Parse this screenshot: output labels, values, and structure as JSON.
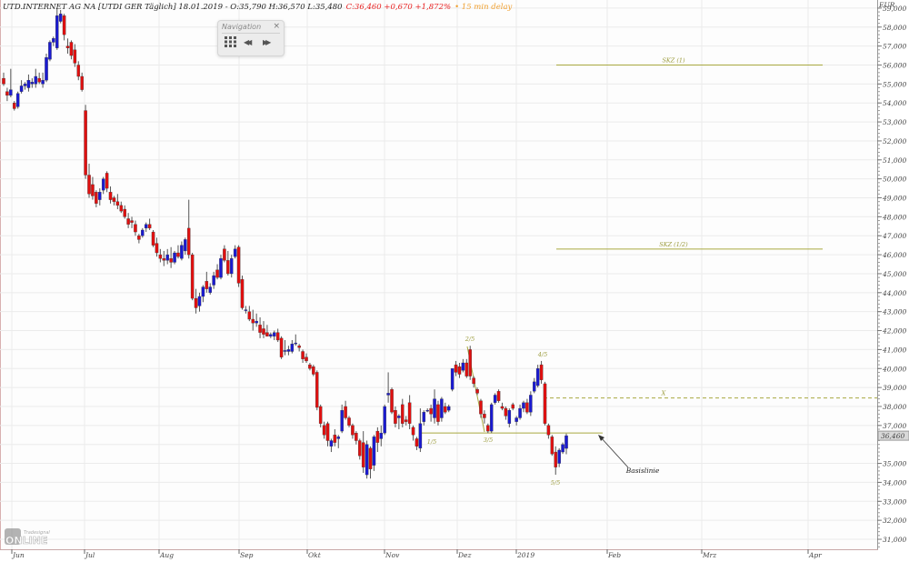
{
  "header": {
    "instrument": "UTD.INTERNET AG NA [UTDI GER Täglich] 18.01.2019 - O:35,790 H:36,570 L:35,480",
    "change": "C:36,460 +0,670 +1,872%",
    "delay": "• 15 min delay"
  },
  "navigation": {
    "title": "Navigation",
    "close_icon": "×",
    "grid_icon": "grid-icon",
    "back_icon": "◀◀",
    "forward_icon": "▶▶"
  },
  "logo": {
    "brand": "Tradesignal",
    "text": "ONLINE"
  },
  "colors": {
    "up": "#1a1ad0",
    "down": "#e01010",
    "annotation": "#a8a840",
    "grid": "#ebebeb"
  },
  "chart_data": {
    "type": "candlestick",
    "currency": "EUR",
    "ylim": [
      30.5,
      59.3
    ],
    "y_ticks": [
      "59,000",
      "58,000",
      "57,000",
      "56,000",
      "55,000",
      "54,000",
      "53,000",
      "52,000",
      "51,000",
      "50,000",
      "49,000",
      "48,000",
      "47,000",
      "46,000",
      "45,000",
      "44,000",
      "43,000",
      "42,000",
      "41,000",
      "40,000",
      "39,000",
      "38,000",
      "37,000",
      "35,000",
      "34,000",
      "33,000",
      "32,000",
      "31,000"
    ],
    "y_tick_values": [
      59,
      58,
      57,
      56,
      55,
      54,
      53,
      52,
      51,
      50,
      49,
      48,
      47,
      46,
      45,
      44,
      43,
      42,
      41,
      40,
      39,
      38,
      37,
      35,
      34,
      33,
      32,
      31
    ],
    "x_ticks": [
      "Jun",
      "Jul",
      "Aug",
      "Sep",
      "Okt",
      "Nov",
      "Dez",
      "2019",
      "Feb",
      "Mrz",
      "Apr"
    ],
    "last_price_label": "36,460",
    "last_price": 36.46,
    "grid": true,
    "ohlc": [
      [
        55.3,
        55.6,
        54.9,
        55.0
      ],
      [
        54.6,
        54.8,
        54.1,
        54.4
      ],
      [
        54.4,
        55.8,
        54.3,
        54.7
      ],
      [
        54.0,
        54.1,
        53.6,
        53.7
      ],
      [
        53.8,
        54.6,
        53.7,
        54.5
      ],
      [
        54.6,
        55.2,
        54.5,
        54.9
      ],
      [
        54.9,
        55.1,
        54.7,
        55.0
      ],
      [
        54.8,
        55.5,
        54.6,
        55.2
      ],
      [
        55.0,
        55.3,
        54.8,
        55.1
      ],
      [
        55.0,
        55.8,
        54.8,
        55.4
      ],
      [
        55.3,
        55.6,
        55.0,
        55.1
      ],
      [
        55.0,
        55.6,
        54.8,
        55.2
      ],
      [
        55.2,
        56.6,
        55.1,
        56.4
      ],
      [
        56.3,
        57.3,
        56.2,
        57.2
      ],
      [
        57.2,
        57.5,
        57.0,
        57.4
      ],
      [
        56.9,
        59.0,
        56.8,
        58.6
      ],
      [
        58.3,
        58.9,
        58.2,
        58.7
      ],
      [
        58.6,
        58.7,
        57.3,
        57.6
      ],
      [
        57.0,
        57.4,
        56.6,
        56.9
      ],
      [
        57.2,
        57.3,
        56.3,
        56.5
      ],
      [
        56.8,
        57.1,
        55.9,
        56.1
      ],
      [
        56.0,
        56.2,
        55.2,
        55.4
      ],
      [
        55.4,
        55.6,
        54.6,
        54.7
      ],
      [
        53.6,
        53.9,
        50.0,
        50.2
      ],
      [
        50.2,
        50.8,
        49.0,
        49.2
      ],
      [
        49.7,
        50.1,
        48.9,
        49.1
      ],
      [
        49.3,
        49.4,
        48.5,
        48.7
      ],
      [
        48.9,
        49.5,
        48.6,
        49.3
      ],
      [
        49.4,
        50.1,
        49.2,
        50.0
      ],
      [
        50.3,
        50.4,
        49.3,
        49.5
      ],
      [
        49.3,
        49.6,
        48.7,
        48.9
      ],
      [
        49.0,
        49.1,
        48.6,
        48.8
      ],
      [
        48.8,
        49.2,
        48.4,
        48.6
      ],
      [
        48.6,
        48.8,
        48.2,
        48.3
      ],
      [
        48.4,
        48.6,
        47.9,
        48.0
      ],
      [
        47.9,
        48.2,
        47.4,
        47.6
      ],
      [
        47.8,
        48.0,
        47.4,
        47.7
      ],
      [
        47.6,
        47.8,
        47.0,
        47.2
      ],
      [
        47.0,
        47.1,
        46.6,
        46.8
      ],
      [
        47.0,
        47.4,
        46.9,
        47.3
      ],
      [
        47.4,
        47.7,
        47.2,
        47.6
      ],
      [
        47.6,
        47.9,
        47.3,
        47.4
      ],
      [
        47.2,
        47.3,
        46.4,
        46.5
      ],
      [
        46.6,
        46.9,
        45.9,
        46.1
      ],
      [
        46.0,
        46.3,
        45.6,
        45.8
      ],
      [
        45.8,
        46.2,
        45.4,
        45.7
      ],
      [
        45.7,
        46.3,
        45.5,
        46.0
      ],
      [
        45.8,
        46.4,
        45.3,
        45.6
      ],
      [
        45.6,
        46.2,
        45.5,
        46.1
      ],
      [
        46.1,
        46.5,
        45.8,
        45.9
      ],
      [
        45.8,
        46.7,
        45.7,
        46.5
      ],
      [
        46.2,
        46.9,
        46.0,
        46.8
      ],
      [
        47.4,
        48.9,
        45.8,
        46.0
      ],
      [
        46.0,
        46.1,
        43.6,
        43.7
      ],
      [
        43.7,
        44.2,
        42.9,
        43.2
      ],
      [
        43.3,
        44.0,
        43.0,
        43.8
      ],
      [
        43.8,
        44.4,
        43.5,
        44.3
      ],
      [
        44.6,
        45.1,
        44.0,
        44.2
      ],
      [
        44.0,
        44.5,
        43.9,
        44.3
      ],
      [
        44.4,
        45.1,
        44.2,
        44.9
      ],
      [
        45.2,
        45.5,
        44.7,
        44.8
      ],
      [
        44.8,
        46.0,
        44.7,
        45.8
      ],
      [
        46.3,
        46.5,
        45.6,
        45.7
      ],
      [
        45.7,
        46.2,
        44.9,
        45.0
      ],
      [
        45.0,
        46.0,
        44.8,
        45.8
      ],
      [
        45.9,
        46.5,
        45.8,
        46.3
      ],
      [
        46.4,
        46.5,
        44.3,
        44.5
      ],
      [
        44.7,
        44.9,
        43.1,
        43.2
      ],
      [
        43.1,
        43.3,
        42.9,
        43.1
      ],
      [
        43.0,
        43.3,
        42.5,
        42.6
      ],
      [
        42.6,
        43.1,
        42.0,
        42.4
      ],
      [
        42.4,
        42.9,
        42.2,
        42.5
      ],
      [
        42.3,
        42.7,
        41.6,
        41.9
      ],
      [
        42.1,
        42.5,
        41.6,
        41.8
      ],
      [
        41.9,
        42.3,
        41.7,
        41.7
      ],
      [
        41.7,
        41.9,
        41.6,
        41.8
      ],
      [
        41.7,
        42.0,
        41.5,
        41.9
      ],
      [
        41.9,
        42.1,
        41.4,
        41.5
      ],
      [
        41.6,
        41.7,
        40.5,
        40.6
      ],
      [
        40.9,
        41.5,
        40.7,
        40.95
      ],
      [
        40.9,
        41.2,
        40.7,
        41.0
      ],
      [
        40.9,
        41.5,
        40.8,
        41.3
      ],
      [
        41.3,
        41.8,
        41.2,
        41.35
      ],
      [
        41.2,
        41.3,
        40.9,
        41.1
      ],
      [
        40.9,
        41.0,
        40.3,
        40.5
      ],
      [
        40.6,
        40.8,
        40.3,
        40.4
      ],
      [
        40.2,
        40.3,
        39.9,
        40.0
      ],
      [
        40.1,
        40.2,
        39.6,
        39.7
      ],
      [
        39.8,
        39.9,
        37.8,
        37.95
      ],
      [
        38.0,
        38.1,
        36.9,
        37.1
      ],
      [
        37.0,
        37.2,
        36.3,
        36.5
      ],
      [
        37.1,
        37.2,
        35.9,
        36.2
      ],
      [
        35.9,
        36.3,
        35.6,
        36.2
      ],
      [
        36.5,
        36.8,
        35.9,
        36.1
      ],
      [
        36.3,
        36.5,
        35.8,
        36.4
      ],
      [
        36.7,
        38.1,
        36.6,
        37.8
      ],
      [
        38.0,
        38.3,
        37.3,
        37.4
      ],
      [
        37.4,
        37.5,
        36.9,
        37.0
      ],
      [
        37.0,
        37.1,
        36.3,
        36.5
      ],
      [
        36.6,
        36.7,
        36.0,
        36.2
      ],
      [
        36.2,
        36.3,
        35.2,
        35.4
      ],
      [
        36.1,
        36.7,
        34.5,
        34.8
      ],
      [
        34.4,
        36.2,
        34.2,
        36.0
      ],
      [
        35.8,
        35.9,
        34.2,
        34.7
      ],
      [
        34.9,
        36.5,
        34.6,
        36.4
      ],
      [
        36.7,
        36.9,
        35.6,
        36.1
      ],
      [
        36.3,
        37.0,
        35.9,
        36.6
      ],
      [
        36.6,
        38.1,
        36.5,
        38.0
      ],
      [
        38.6,
        39.8,
        38.2,
        38.7
      ],
      [
        38.9,
        39.0,
        37.6,
        37.7
      ],
      [
        37.8,
        38.0,
        36.9,
        37.1
      ],
      [
        37.4,
        37.6,
        36.8,
        37.5
      ],
      [
        38.1,
        38.4,
        36.9,
        37.1
      ],
      [
        37.3,
        37.5,
        37.0,
        37.2
      ],
      [
        38.2,
        38.6,
        36.8,
        37.1
      ],
      [
        36.9,
        37.0,
        36.2,
        36.5
      ],
      [
        36.3,
        36.4,
        35.7,
        35.9
      ],
      [
        35.8,
        37.9,
        35.6,
        37.1
      ],
      [
        37.2,
        37.8,
        37.0,
        37.7
      ],
      [
        37.8,
        37.9,
        37.7,
        37.8
      ],
      [
        37.9,
        38.1,
        37.2,
        37.6
      ],
      [
        37.4,
        38.9,
        37.1,
        38.4
      ],
      [
        38.1,
        38.3,
        37.0,
        37.2
      ],
      [
        37.4,
        38.5,
        37.2,
        38.4
      ],
      [
        38.0,
        38.2,
        37.6,
        37.7
      ],
      [
        37.8,
        38.1,
        37.7,
        38.0
      ],
      [
        38.9,
        40.0,
        38.8,
        40.0
      ],
      [
        40.2,
        40.4,
        39.6,
        39.8
      ],
      [
        40.1,
        40.3,
        39.5,
        39.7
      ],
      [
        39.9,
        40.5,
        39.8,
        40.3
      ],
      [
        40.3,
        40.5,
        39.5,
        39.6
      ],
      [
        41.0,
        41.2,
        39.4,
        39.6
      ],
      [
        39.5,
        39.6,
        39.0,
        39.2
      ],
      [
        38.9,
        39.0,
        38.6,
        38.7
      ],
      [
        38.3,
        38.4,
        37.4,
        37.6
      ],
      [
        37.6,
        37.8,
        37.1,
        37.4
      ],
      [
        37.0,
        37.1,
        36.6,
        36.7
      ],
      [
        36.7,
        38.2,
        36.6,
        38.1
      ],
      [
        38.2,
        38.7,
        38.1,
        38.6
      ],
      [
        38.8,
        38.9,
        38.2,
        38.3
      ],
      [
        38.0,
        38.2,
        37.8,
        37.9
      ],
      [
        37.9,
        38.0,
        37.3,
        37.5
      ],
      [
        37.1,
        37.9,
        36.9,
        37.8
      ],
      [
        38.1,
        38.2,
        37.8,
        37.9
      ],
      [
        37.2,
        37.5,
        37.0,
        37.4
      ],
      [
        37.4,
        38.1,
        37.3,
        37.9
      ],
      [
        37.9,
        38.3,
        37.7,
        38.2
      ],
      [
        38.2,
        38.4,
        37.6,
        37.7
      ],
      [
        37.7,
        38.8,
        37.5,
        38.6
      ],
      [
        38.8,
        39.5,
        38.7,
        39.3
      ],
      [
        39.1,
        40.2,
        39.0,
        40.0
      ],
      [
        40.2,
        40.4,
        39.2,
        39.4
      ],
      [
        39.2,
        39.3,
        37.0,
        37.1
      ],
      [
        37.0,
        37.1,
        36.3,
        36.5
      ],
      [
        36.4,
        36.5,
        35.4,
        35.5
      ],
      [
        35.6,
        35.9,
        34.4,
        34.8
      ],
      [
        35.0,
        35.8,
        34.8,
        35.7
      ],
      [
        35.6,
        36.1,
        35.5,
        36.0
      ],
      [
        35.79,
        36.57,
        35.48,
        36.46
      ]
    ],
    "annotations": {
      "target_1": {
        "label": "SKZ (1)",
        "price": 56.0
      },
      "target_half": {
        "label": "SKZ (1/2)",
        "price": 46.3
      },
      "x_level": {
        "label": "X",
        "price": 38.45
      },
      "baseline": {
        "label": "Basislinie",
        "price": 36.6
      },
      "points": [
        "1/5",
        "2/5",
        "3/5",
        "4/5",
        "5/5"
      ]
    }
  }
}
